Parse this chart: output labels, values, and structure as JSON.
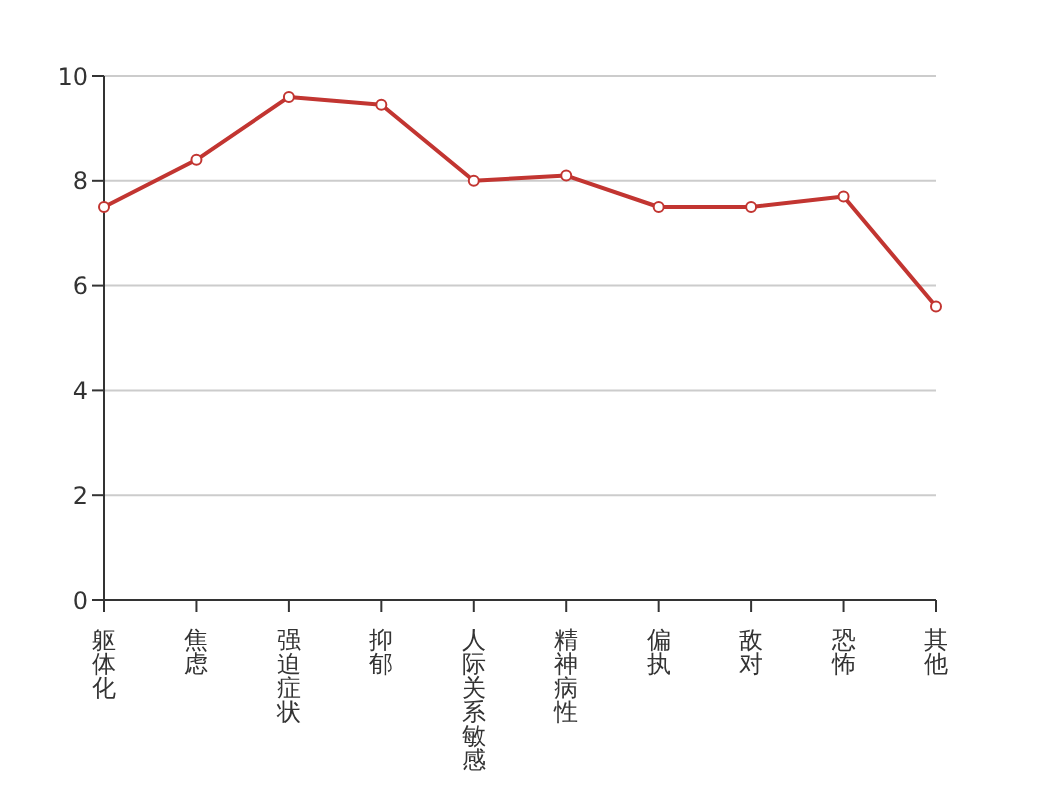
{
  "chart_data": {
    "type": "line",
    "categories": [
      "躯体化",
      "焦虑",
      "强迫症状",
      "抑郁",
      "人际关系敏感",
      "精神病性",
      "偏执",
      "敌对",
      "恐怖",
      "其他"
    ],
    "series": [
      {
        "color": "#c23531",
        "values": [
          7.5,
          8.4,
          9.6,
          9.45,
          8.0,
          8.1,
          7.5,
          7.5,
          7.7,
          5.6
        ]
      }
    ],
    "ylim": [
      0,
      10
    ],
    "yticks": [
      0,
      2,
      4,
      6,
      8,
      10
    ],
    "grid": "y",
    "marker": "circle",
    "line_style": "solid",
    "legend": false
  }
}
